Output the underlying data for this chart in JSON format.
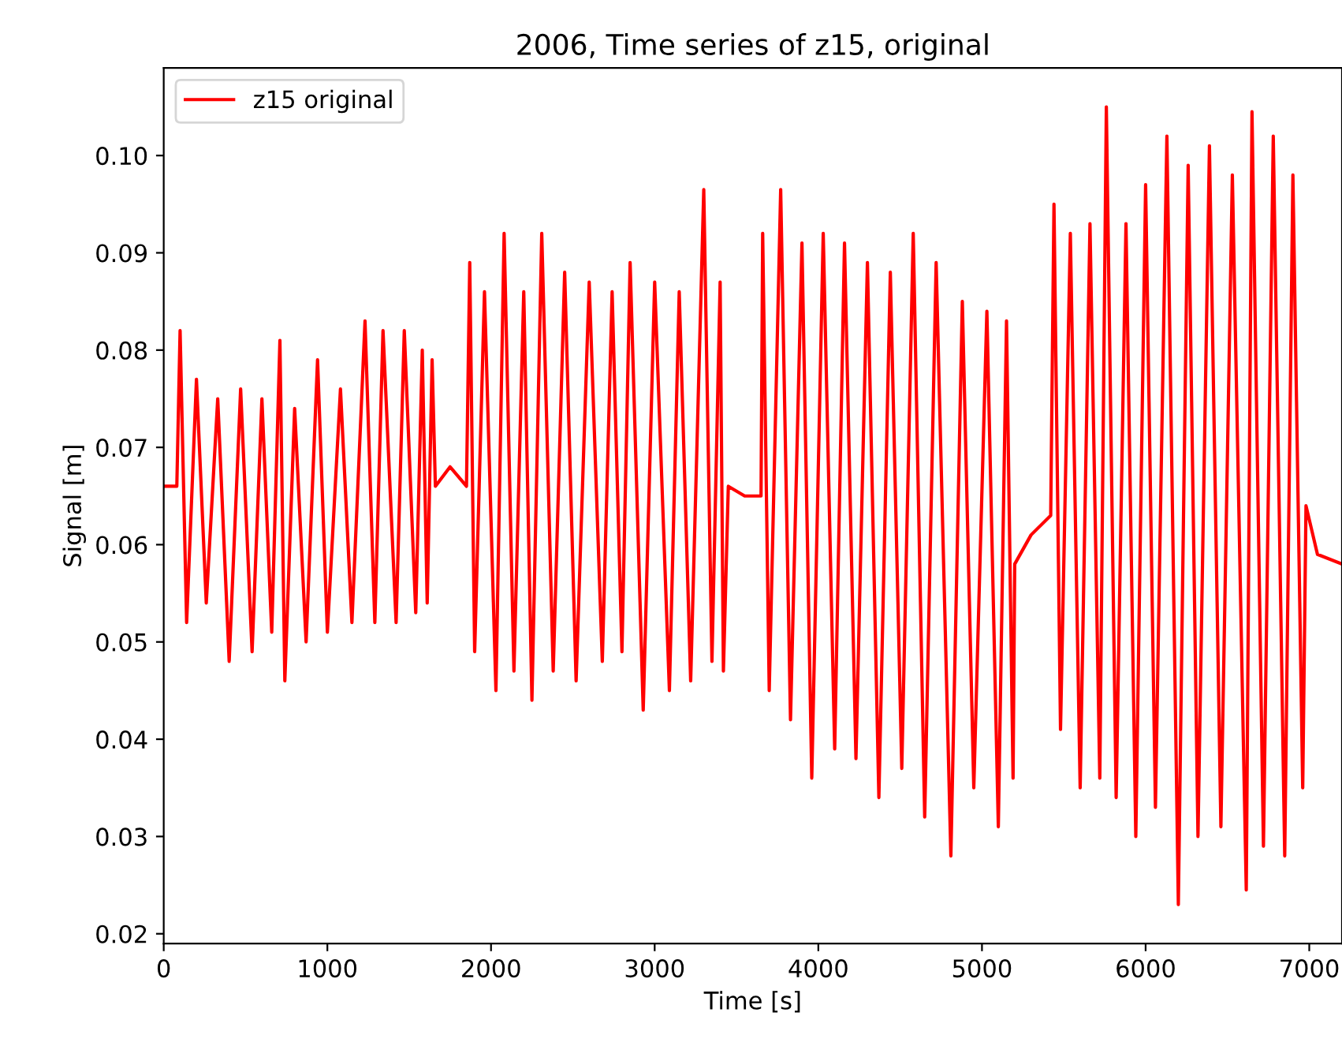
{
  "chart_data": {
    "type": "line",
    "title": "2006, Time series of z15, original",
    "xlabel": "Time [s]",
    "ylabel": "Signal [m]",
    "xlim": [
      0,
      7200
    ],
    "xticks": [
      0,
      1000,
      2000,
      3000,
      4000,
      5000,
      6000,
      7000
    ],
    "ylim": [
      0.019,
      0.109
    ],
    "yticks": [
      {
        "value": 0.02,
        "label": "0.02"
      },
      {
        "value": 0.03,
        "label": "0.03"
      },
      {
        "value": 0.04,
        "label": "0.04"
      },
      {
        "value": 0.05,
        "label": "0.05"
      },
      {
        "value": 0.06,
        "label": "0.06"
      },
      {
        "value": 0.07,
        "label": "0.07"
      },
      {
        "value": 0.08,
        "label": "0.08"
      },
      {
        "value": 0.09,
        "label": "0.09"
      },
      {
        "value": 0.1,
        "label": "0.10"
      }
    ],
    "legend": "top left",
    "grid": false,
    "marker": "none",
    "line_style": "solid",
    "series": [
      {
        "name": "z15 original",
        "color": "#ff0000",
        "x": [
          0,
          80,
          100,
          140,
          200,
          260,
          330,
          400,
          470,
          540,
          600,
          660,
          710,
          740,
          800,
          870,
          940,
          1000,
          1080,
          1150,
          1230,
          1290,
          1340,
          1420,
          1470,
          1540,
          1580,
          1610,
          1640,
          1660,
          1750,
          1850,
          1870,
          1900,
          1960,
          2030,
          2080,
          2140,
          2200,
          2250,
          2310,
          2380,
          2450,
          2520,
          2600,
          2680,
          2740,
          2800,
          2850,
          2930,
          3000,
          3090,
          3150,
          3220,
          3300,
          3350,
          3400,
          3420,
          3450,
          3550,
          3650,
          3660,
          3700,
          3770,
          3830,
          3900,
          3960,
          4030,
          4100,
          4160,
          4230,
          4300,
          4370,
          4440,
          4510,
          4580,
          4650,
          4720,
          4810,
          4880,
          4950,
          5030,
          5100,
          5150,
          5190,
          5200,
          5300,
          5420,
          5440,
          5480,
          5540,
          5600,
          5660,
          5720,
          5760,
          5820,
          5880,
          5940,
          6000,
          6060,
          6130,
          6200,
          6260,
          6320,
          6390,
          6460,
          6530,
          6615,
          6650,
          6720,
          6780,
          6850,
          6900,
          6960,
          6980,
          7050,
          7200
        ],
        "values": [
          0.066,
          0.066,
          0.082,
          0.052,
          0.077,
          0.054,
          0.075,
          0.048,
          0.076,
          0.049,
          0.075,
          0.051,
          0.081,
          0.046,
          0.074,
          0.05,
          0.079,
          0.051,
          0.076,
          0.052,
          0.083,
          0.052,
          0.082,
          0.052,
          0.082,
          0.053,
          0.08,
          0.054,
          0.079,
          0.066,
          0.068,
          0.066,
          0.089,
          0.049,
          0.086,
          0.045,
          0.092,
          0.047,
          0.086,
          0.044,
          0.092,
          0.047,
          0.088,
          0.046,
          0.087,
          0.048,
          0.086,
          0.049,
          0.089,
          0.043,
          0.087,
          0.045,
          0.086,
          0.046,
          0.0965,
          0.048,
          0.087,
          0.047,
          0.066,
          0.065,
          0.065,
          0.092,
          0.045,
          0.0965,
          0.042,
          0.091,
          0.036,
          0.092,
          0.039,
          0.091,
          0.038,
          0.089,
          0.034,
          0.088,
          0.037,
          0.092,
          0.032,
          0.089,
          0.028,
          0.085,
          0.035,
          0.084,
          0.031,
          0.083,
          0.036,
          0.058,
          0.061,
          0.063,
          0.095,
          0.041,
          0.092,
          0.035,
          0.093,
          0.036,
          0.105,
          0.034,
          0.093,
          0.03,
          0.097,
          0.033,
          0.102,
          0.023,
          0.099,
          0.03,
          0.101,
          0.031,
          0.098,
          0.0245,
          0.1045,
          0.029,
          0.102,
          0.028,
          0.098,
          0.035,
          0.064,
          0.059,
          0.058
        ]
      }
    ]
  }
}
